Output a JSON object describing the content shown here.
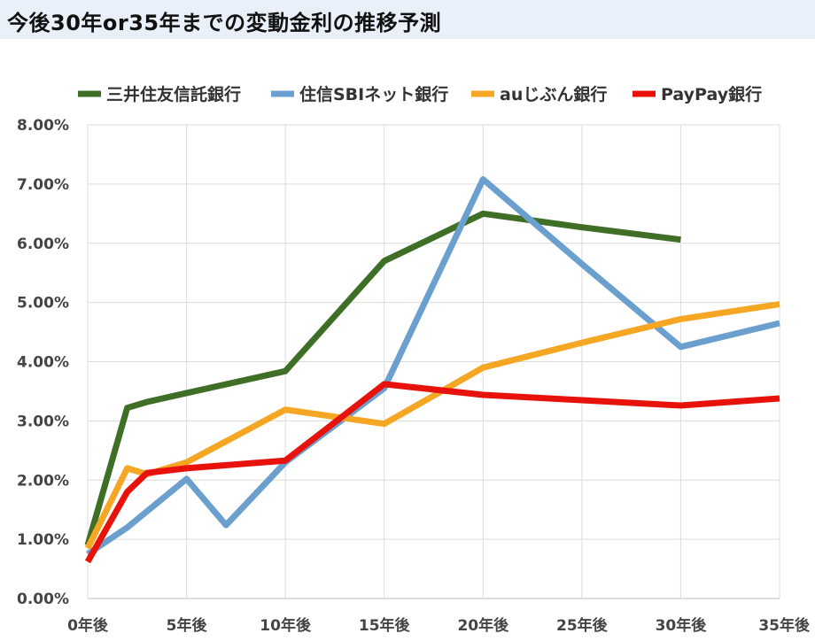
{
  "header": {
    "title": "今後30年or35年までの変動金利の推移予測"
  },
  "chart_data": {
    "type": "line",
    "title": "今後30年or35年までの変動金利の推移予測",
    "xlabel": "",
    "ylabel": "",
    "x_range": [
      0,
      35
    ],
    "ylim": [
      0,
      8
    ],
    "x_ticks": [
      {
        "x": 0,
        "label": "0年後"
      },
      {
        "x": 5,
        "label": "5年後"
      },
      {
        "x": 10,
        "label": "10年後"
      },
      {
        "x": 15,
        "label": "15年後"
      },
      {
        "x": 20,
        "label": "20年後"
      },
      {
        "x": 25,
        "label": "25年後"
      },
      {
        "x": 30,
        "label": "30年後"
      },
      {
        "x": 35,
        "label": "35年後"
      }
    ],
    "y_ticks": [
      {
        "y": 0,
        "label": "0.00%"
      },
      {
        "y": 1,
        "label": "1.00%"
      },
      {
        "y": 2,
        "label": "2.00%"
      },
      {
        "y": 3,
        "label": "3.00%"
      },
      {
        "y": 4,
        "label": "4.00%"
      },
      {
        "y": 5,
        "label": "5.00%"
      },
      {
        "y": 6,
        "label": "6.00%"
      },
      {
        "y": 7,
        "label": "7.00%"
      },
      {
        "y": 8,
        "label": "8.00%"
      }
    ],
    "grid": true,
    "legend_position": "top",
    "series": [
      {
        "name": "三井住友信託銀行",
        "color": "#3f6e26",
        "points": [
          [
            0,
            0.9
          ],
          [
            2,
            3.22
          ],
          [
            3,
            3.32
          ],
          [
            5,
            3.47
          ],
          [
            10,
            3.84
          ],
          [
            15,
            5.7
          ],
          [
            20,
            6.5
          ],
          [
            25,
            6.27
          ],
          [
            30,
            6.06
          ]
        ]
      },
      {
        "name": "住信SBIネット銀行",
        "color": "#6a9fce",
        "points": [
          [
            0,
            0.75
          ],
          [
            2,
            1.2
          ],
          [
            5,
            2.02
          ],
          [
            7,
            1.24
          ],
          [
            10,
            2.3
          ],
          [
            15,
            3.55
          ],
          [
            20,
            7.08
          ],
          [
            25,
            5.65
          ],
          [
            30,
            4.25
          ],
          [
            35,
            4.65
          ]
        ]
      },
      {
        "name": "auじぶん銀行",
        "color": "#f5a623",
        "points": [
          [
            0,
            0.85
          ],
          [
            2,
            2.2
          ],
          [
            3,
            2.1
          ],
          [
            5,
            2.3
          ],
          [
            10,
            3.19
          ],
          [
            15,
            2.95
          ],
          [
            20,
            3.9
          ],
          [
            25,
            4.32
          ],
          [
            30,
            4.72
          ],
          [
            35,
            4.97
          ]
        ]
      },
      {
        "name": "PayPay銀行",
        "color": "#e8120c",
        "points": [
          [
            0,
            0.62
          ],
          [
            2,
            1.8
          ],
          [
            3,
            2.12
          ],
          [
            5,
            2.2
          ],
          [
            10,
            2.33
          ],
          [
            15,
            3.62
          ],
          [
            20,
            3.44
          ],
          [
            25,
            3.35
          ],
          [
            30,
            3.26
          ],
          [
            35,
            3.38
          ]
        ]
      }
    ]
  }
}
